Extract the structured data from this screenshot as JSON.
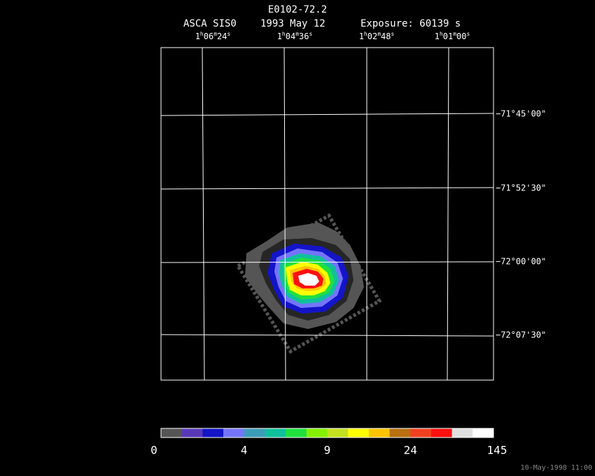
{
  "header": {
    "title": "E0102-72.2",
    "instrument": "ASCA SIS0",
    "date": "1993 May 12",
    "exposure": "Exposure: 60139 s"
  },
  "ra_labels": [
    [
      "1",
      "h",
      "06",
      "m",
      "24",
      "s"
    ],
    [
      "1",
      "h",
      "04",
      "m",
      "36",
      "s"
    ],
    [
      "1",
      "h",
      "02",
      "m",
      "48",
      "s"
    ],
    [
      "1",
      "h",
      "01",
      "m",
      "00",
      "s"
    ]
  ],
  "dec_labels": [
    "−71°45'00\"",
    "−71°52'30\"",
    "−72°00'00\"",
    "−72°07'30\""
  ],
  "colorbar": {
    "colors": [
      "#555555",
      "#5838b8",
      "#1414c8",
      "#7474ff",
      "#3c9cb8",
      "#10c09c",
      "#20e040",
      "#84f000",
      "#c4e020",
      "#ffff00",
      "#ffc400",
      "#b87010",
      "#f04020",
      "#ff1010",
      "#e0e0e0",
      "#ffffff"
    ],
    "labels": [
      "0",
      "4",
      "9",
      "24",
      "145"
    ]
  },
  "footer": "10-May-1998 11:00"
}
